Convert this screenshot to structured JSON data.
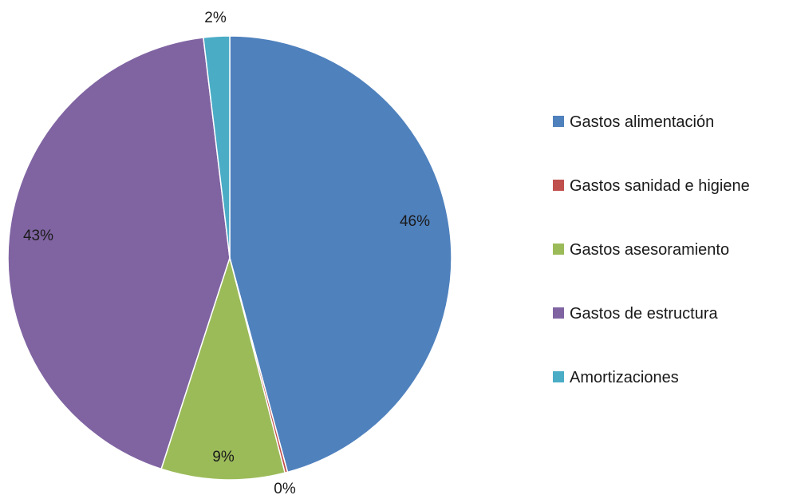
{
  "chart_data": {
    "type": "pie",
    "start_angle_deg": 0,
    "direction": "clockwise",
    "legend_position": "right",
    "slices": [
      {
        "label": "Gastos alimentación",
        "value": 45.8,
        "display": "46%",
        "color": "#4f81bd"
      },
      {
        "label": "Gastos sanidad e higiene",
        "value": 0.2,
        "display": "0%",
        "color": "#c0504d"
      },
      {
        "label": "Gastos asesoramiento",
        "value": 9.0,
        "display": "9%",
        "color": "#9bbb59"
      },
      {
        "label": "Gastos de estructura",
        "value": 43.1,
        "display": "43%",
        "color": "#8064a2"
      },
      {
        "label": "Amortizaciones",
        "value": 1.9,
        "display": "2%",
        "color": "#4bacc6"
      }
    ]
  }
}
